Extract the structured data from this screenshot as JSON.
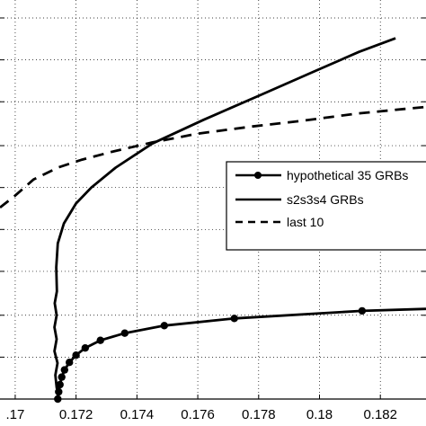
{
  "chart_data": {
    "type": "line",
    "xlim": [
      0.1695,
      0.1835
    ],
    "ylim": [
      0,
      1
    ],
    "grid": true,
    "x_ticks": [
      {
        "value": 0.17,
        "label": ".17"
      },
      {
        "value": 0.172,
        "label": "0.172"
      },
      {
        "value": 0.174,
        "label": "0.174"
      },
      {
        "value": 0.176,
        "label": "0.176"
      },
      {
        "value": 0.178,
        "label": "0.178"
      },
      {
        "value": 0.18,
        "label": "0.18"
      },
      {
        "value": 0.182,
        "label": "0.182"
      }
    ],
    "y_grid": [
      0.0,
      0.105,
      0.21,
      0.32,
      0.425,
      0.53,
      0.635,
      0.745,
      0.85,
      0.955
    ],
    "legend": {
      "position": "center-right",
      "entries": [
        "hypothetical 35 GRBs",
        "s2s3s4 GRBs",
        "last 10"
      ]
    },
    "series": [
      {
        "name": "hypothetical 35 GRBs",
        "style": "solid-marker",
        "color": "#000000",
        "points": [
          [
            0.1714,
            0.0
          ],
          [
            0.17143,
            0.018
          ],
          [
            0.17147,
            0.036
          ],
          [
            0.17153,
            0.055
          ],
          [
            0.17162,
            0.073
          ],
          [
            0.17178,
            0.092
          ],
          [
            0.172,
            0.11
          ],
          [
            0.1723,
            0.128
          ],
          [
            0.1728,
            0.147
          ],
          [
            0.1736,
            0.165
          ],
          [
            0.1749,
            0.184
          ],
          [
            0.1772,
            0.202
          ],
          [
            0.1814,
            0.221
          ],
          [
            0.1835,
            0.226
          ]
        ],
        "markers": [
          [
            0.1714,
            0.0
          ],
          [
            0.17143,
            0.018
          ],
          [
            0.17147,
            0.036
          ],
          [
            0.17153,
            0.055
          ],
          [
            0.17162,
            0.073
          ],
          [
            0.17178,
            0.092
          ],
          [
            0.172,
            0.11
          ],
          [
            0.1723,
            0.128
          ],
          [
            0.1728,
            0.147
          ],
          [
            0.1736,
            0.165
          ],
          [
            0.1749,
            0.184
          ],
          [
            0.1772,
            0.202
          ],
          [
            0.1814,
            0.221
          ]
        ]
      },
      {
        "name": "s2s3s4 GRBs",
        "style": "solid",
        "color": "#000000",
        "points": [
          [
            0.17143,
            0.0
          ],
          [
            0.17136,
            0.03
          ],
          [
            0.17132,
            0.06
          ],
          [
            0.17139,
            0.09
          ],
          [
            0.17129,
            0.12
          ],
          [
            0.17136,
            0.15
          ],
          [
            0.17129,
            0.18
          ],
          [
            0.17136,
            0.21
          ],
          [
            0.1713,
            0.24
          ],
          [
            0.17137,
            0.27
          ],
          [
            0.17135,
            0.33
          ],
          [
            0.1714,
            0.39
          ],
          [
            0.1716,
            0.44
          ],
          [
            0.172,
            0.49
          ],
          [
            0.1725,
            0.53
          ],
          [
            0.1733,
            0.58
          ],
          [
            0.1745,
            0.64
          ],
          [
            0.1762,
            0.7
          ],
          [
            0.178,
            0.76
          ],
          [
            0.1798,
            0.82
          ],
          [
            0.1813,
            0.87
          ],
          [
            0.1825,
            0.904
          ]
        ]
      },
      {
        "name": "last 10",
        "style": "dashed",
        "color": "#000000",
        "points": [
          [
            0.1695,
            0.48
          ],
          [
            0.17,
            0.51
          ],
          [
            0.1706,
            0.55
          ],
          [
            0.1714,
            0.58
          ],
          [
            0.1722,
            0.6
          ],
          [
            0.1732,
            0.62
          ],
          [
            0.1745,
            0.643
          ],
          [
            0.176,
            0.665
          ],
          [
            0.1778,
            0.683
          ],
          [
            0.1795,
            0.698
          ],
          [
            0.1812,
            0.715
          ],
          [
            0.1828,
            0.727
          ],
          [
            0.1835,
            0.732
          ]
        ]
      }
    ]
  }
}
